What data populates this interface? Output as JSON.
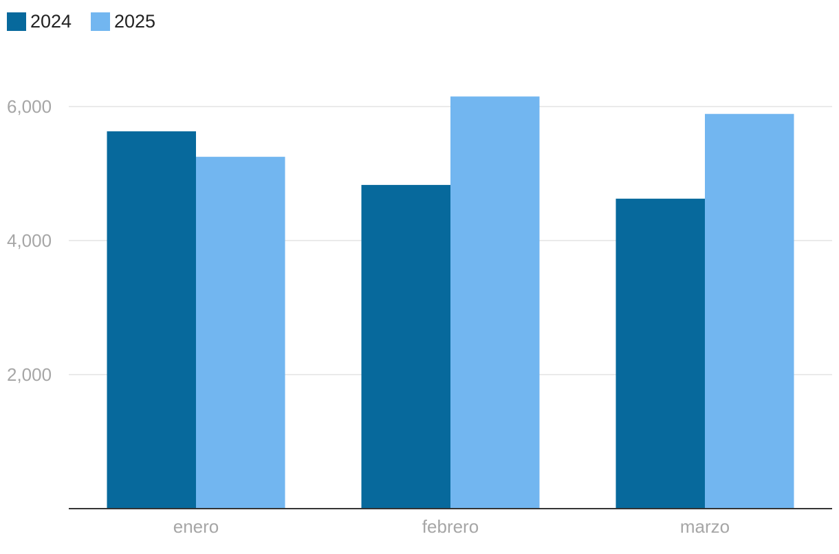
{
  "chart_data": {
    "type": "bar",
    "categories": [
      "enero",
      "febrero",
      "marzo"
    ],
    "series": [
      {
        "name": "2024",
        "color": "#07699c",
        "values": [
          5630,
          4830,
          4625
        ]
      },
      {
        "name": "2025",
        "color": "#72b6f0",
        "values": [
          5250,
          6150,
          5890
        ]
      }
    ],
    "ylim": [
      0,
      6800
    ],
    "yticks": [
      {
        "value": 2000,
        "label": "2,000"
      },
      {
        "value": 4000,
        "label": "4,000"
      },
      {
        "value": 6000,
        "label": "6,000"
      }
    ],
    "grid": true
  }
}
